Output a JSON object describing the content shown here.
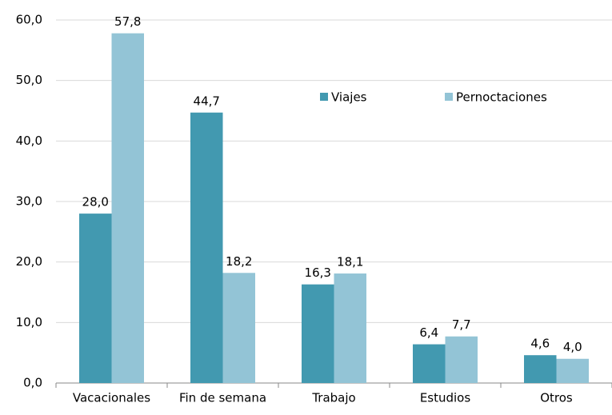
{
  "chart_data": {
    "type": "bar",
    "categories": [
      "Vacacionales",
      "Fin de semana",
      "Trabajo",
      "Estudios",
      "Otros"
    ],
    "series": [
      {
        "name": "Viajes",
        "color": "#4299b0",
        "values": [
          28.0,
          44.7,
          16.3,
          6.4,
          4.6
        ],
        "value_labels": [
          "28,0",
          "44,7",
          "16,3",
          "6,4",
          "4,6"
        ]
      },
      {
        "name": "Pernoctaciones",
        "color": "#93c4d6",
        "values": [
          57.8,
          18.2,
          18.1,
          7.7,
          4.0
        ],
        "value_labels": [
          "57,8",
          "18,2",
          "18,1",
          "7,7",
          "4,0"
        ]
      }
    ],
    "ylim": [
      0,
      60
    ],
    "yticks": [
      {
        "value": 0,
        "label": "0,0"
      },
      {
        "value": 10,
        "label": "10,0"
      },
      {
        "value": 20,
        "label": "20,0"
      },
      {
        "value": 30,
        "label": "30,0"
      },
      {
        "value": 40,
        "label": "40,0"
      },
      {
        "value": 50,
        "label": "50,0"
      },
      {
        "value": 60,
        "label": "60,0"
      }
    ],
    "grid": true,
    "legend": "top-right"
  }
}
